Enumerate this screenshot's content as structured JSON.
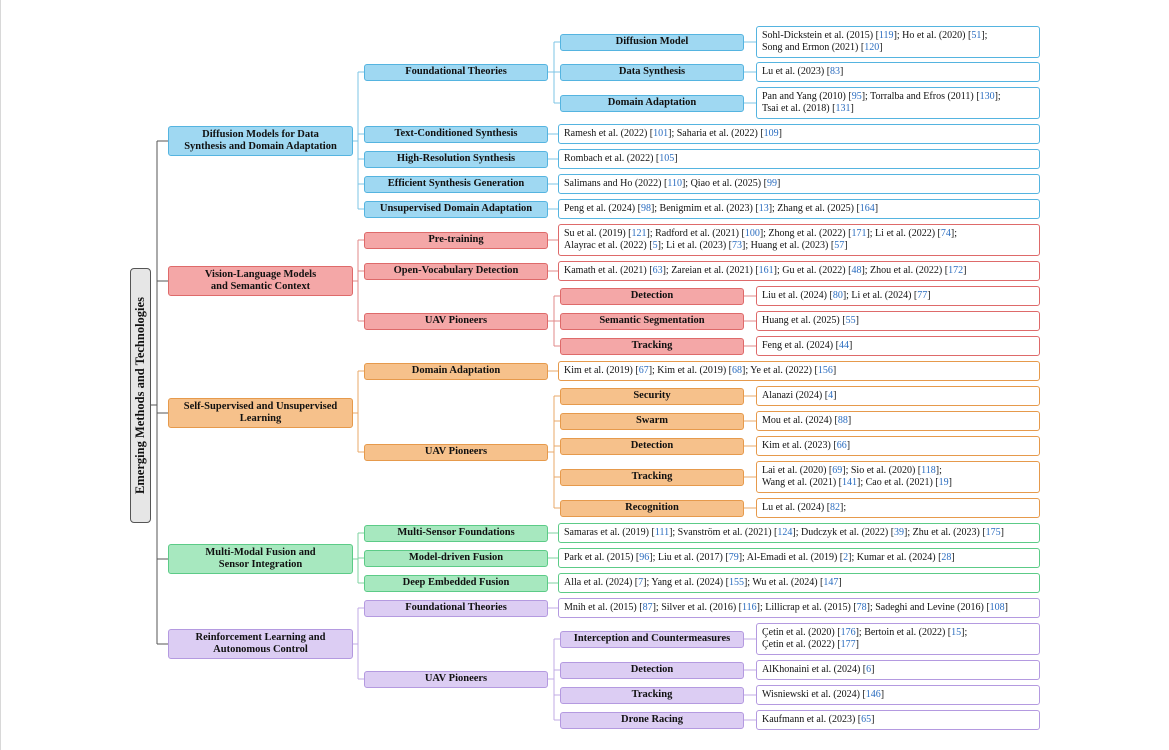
{
  "colors": {
    "blue": {
      "fill": "#9fd8f2",
      "stroke": "#55b4e0",
      "line": "#7cc4e6"
    },
    "red": {
      "fill": "#f4a7a7",
      "stroke": "#de6a6a",
      "line": "#e08a8a"
    },
    "orange": {
      "fill": "#f6c18b",
      "stroke": "#e69a4c",
      "line": "#e8a96a"
    },
    "green": {
      "fill": "#a7e8bf",
      "stroke": "#5ccb87",
      "line": "#7fd3a0"
    },
    "purple": {
      "fill": "#dccdf3",
      "stroke": "#b49ae0",
      "line": "#c2abe6"
    }
  },
  "root": {
    "label": "Emerging Methods and Technologies"
  },
  "categories": [
    {
      "id": "dm",
      "label": "Diffusion Models for Data\nSynthesis and Domain Adaptation",
      "color": "blue",
      "children": [
        {
          "label": "Foundational Theories",
          "children": [
            {
              "label": "Diffusion Model",
              "leaf": "Sohl-Dickstein et al.  (2015) [119]; Ho et al.  (2020) [51];\nSong and Ermon (2021) [120]"
            },
            {
              "label": "Data Synthesis",
              "leaf": "Lu et al.  (2023) [83]"
            },
            {
              "label": "Domain Adaptation",
              "leaf": "Pan and Yang (2010) [95]; Torralba and Efros (2011) [130];\nTsai et al.  (2018) [131]"
            }
          ]
        },
        {
          "label": "Text-Conditioned Synthesis",
          "leaf": "Ramesh et al.  (2022) [101]; Saharia et al.  (2022) [109]"
        },
        {
          "label": "High-Resolution Synthesis",
          "leaf": "Rombach et al.  (2022) [105]"
        },
        {
          "label": "Efficient Synthesis Generation",
          "leaf": "Salimans and Ho (2022) [110]; Qiao et al.  (2025) [99]"
        },
        {
          "label": "Unsupervised Domain Adaptation",
          "leaf": "Peng et al.  (2024) [98]; Benigmim et al.  (2023) [13]; Zhang et al.  (2025) [164]"
        }
      ]
    },
    {
      "id": "vl",
      "label": "Vision-Language Models\nand Semantic Context",
      "color": "red",
      "children": [
        {
          "label": "Pre-training",
          "leaf": "Su et al.  (2019) [121]; Radford et al.  (2021) [100]; Zhong et al.  (2022) [171]; Li et al.  (2022) [74];\nAlayrac et al.  (2022) [5]; Li et al.  (2023) [73]; Huang et al.  (2023) [57]"
        },
        {
          "label": "Open-Vocabulary Detection",
          "leaf": "Kamath et al.  (2021) [63]; Zareian et al.  (2021) [161]; Gu et al.  (2022) [48]; Zhou et al.  (2022) [172]"
        },
        {
          "label": "UAV Pioneers",
          "children": [
            {
              "label": "Detection",
              "leaf": "Liu et al.  (2024) [80]; Li et al.  (2024) [77]"
            },
            {
              "label": "Semantic Segmentation",
              "leaf": "Huang et al.  (2025) [55]"
            },
            {
              "label": "Tracking",
              "leaf": "Feng et al.  (2024) [44]"
            }
          ]
        }
      ]
    },
    {
      "id": "ss",
      "label": "Self-Supervised and Unsupervised\nLearning",
      "color": "orange",
      "children": [
        {
          "label": "Domain Adaptation",
          "leaf": "Kim et al.  (2019) [67]; Kim et al.  (2019) [68]; Ye et al.  (2022) [156]"
        },
        {
          "label": "UAV Pioneers",
          "children": [
            {
              "label": "Security",
              "leaf": "Alanazi (2024) [4]"
            },
            {
              "label": "Swarm",
              "leaf": "Mou et al.  (2024) [88]"
            },
            {
              "label": "Detection",
              "leaf": "Kim et al.  (2023) [66]"
            },
            {
              "label": "Tracking",
              "leaf": "Lai et al.  (2020) [69]; Sio et al.  (2020) [118];\nWang et al.  (2021) [141]; Cao et al.  (2021) [19]"
            },
            {
              "label": "Recognition",
              "leaf": "Lu et al.  (2024) [82];"
            }
          ]
        }
      ]
    },
    {
      "id": "mm",
      "label": "Multi-Modal Fusion and\nSensor Integration",
      "color": "green",
      "children": [
        {
          "label": "Multi-Sensor Foundations",
          "leaf": "Samaras et al.  (2019) [111]; Svanström et al.  (2021) [124]; Dudczyk et al.  (2022) [39]; Zhu et al.  (2023) [175]"
        },
        {
          "label": "Model-driven Fusion",
          "leaf": "Park et al.  (2015) [96]; Liu et al.  (2017) [79]; Al-Emadi et al.  (2019) [2]; Kumar et al.  (2024) [28]"
        },
        {
          "label": "Deep Embedded Fusion",
          "leaf": "Alla et al.  (2024) [7]; Yang et al.  (2024) [155]; Wu et al.  (2024) [147]"
        }
      ]
    },
    {
      "id": "rl",
      "label": "Reinforcement Learning and\nAutonomous Control",
      "color": "purple",
      "children": [
        {
          "label": "Foundational Theories",
          "leaf": "Mnih et al.  (2015) [87]; Silver et al.  (2016) [116]; Lillicrap et al.  (2015) [78]; Sadeghi and Levine (2016) [108]"
        },
        {
          "label": "UAV Pioneers",
          "children": [
            {
              "label": "Interception and Countermeasures",
              "leaf": "Çetin et al.  (2020) [176]; Bertoin et al.  (2022) [15];\nÇetin et al.  (2022) [177]"
            },
            {
              "label": "Detection",
              "leaf": "AlKhonaini et al.  (2024) [6]"
            },
            {
              "label": "Tracking",
              "leaf": "Wisniewski et al.  (2024) [146]"
            },
            {
              "label": "Drone Racing",
              "leaf": "Kaufmann et al.  (2023) [65]"
            }
          ]
        }
      ]
    }
  ]
}
